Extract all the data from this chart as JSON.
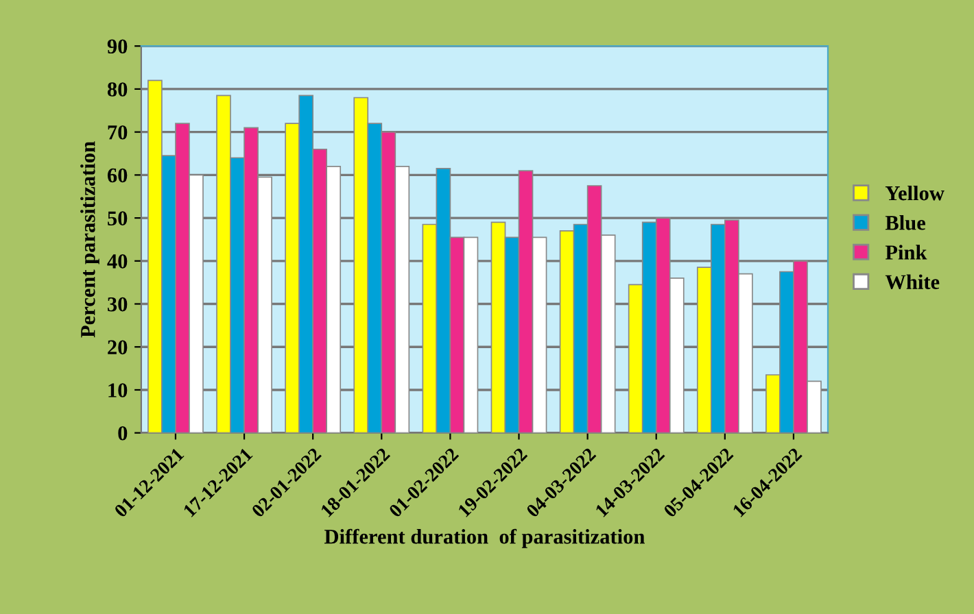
{
  "chart_data": {
    "type": "bar",
    "xlabel": "Different duration  of parasitization",
    "ylabel": "Percent parasitization",
    "categories": [
      "01-12-2021",
      "17-12-2021",
      "02-01-2022",
      "18-01-2022",
      "01-02-2022",
      "19-02-2022",
      "04-03-2022",
      "14-03-2022",
      "05-04-2022",
      "16-04-2022"
    ],
    "series": [
      {
        "name": "Yellow",
        "color": "#ffff00",
        "values": [
          82,
          78.5,
          72,
          78,
          48.5,
          49,
          47,
          34.5,
          38.5,
          13.5
        ]
      },
      {
        "name": "Blue",
        "color": "#00a2d8",
        "values": [
          64.5,
          64,
          78.5,
          72,
          61.5,
          45.5,
          48.5,
          49,
          48.5,
          37.5
        ]
      },
      {
        "name": "Pink",
        "color": "#ee2a8a",
        "values": [
          72,
          71,
          66,
          70,
          45.5,
          61,
          57.5,
          50,
          49.5,
          40
        ]
      },
      {
        "name": "White",
        "color": "#ffffff",
        "values": [
          60,
          59.5,
          62,
          62,
          45.5,
          45.5,
          46,
          36,
          37,
          12
        ]
      }
    ],
    "ylim": [
      0,
      90
    ],
    "yticks": [
      0,
      10,
      20,
      30,
      40,
      50,
      60,
      70,
      80,
      90
    ],
    "grid": "y",
    "legend": "right"
  }
}
